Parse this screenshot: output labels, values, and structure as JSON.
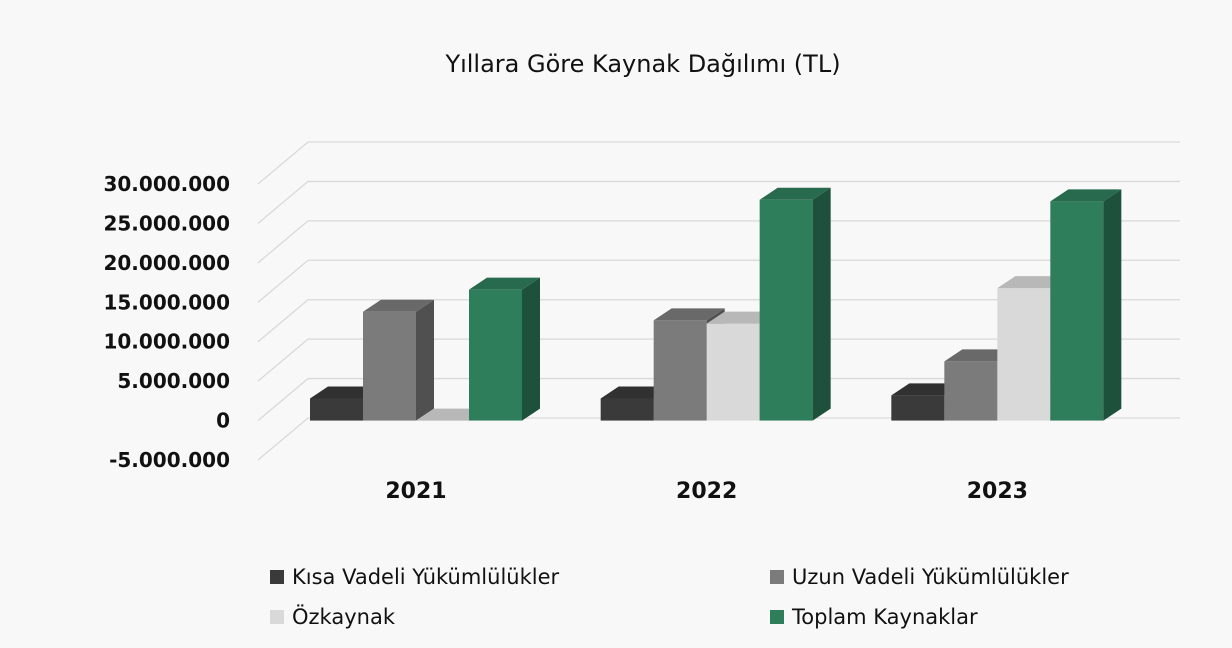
{
  "chart_data": {
    "type": "bar",
    "title": "Yıllara Göre Kaynak Dağılımı (TL)",
    "categories": [
      "2021",
      "2022",
      "2023"
    ],
    "series": [
      {
        "name": "Kısa Vadeli Yükümlülükler",
        "color": "#3a3a3a",
        "values": [
          2800000,
          2800000,
          3200000
        ]
      },
      {
        "name": "Uzun Vadeli Yükümlülükler",
        "color": "#7b7b7b",
        "values": [
          13800000,
          12700000,
          7500000
        ]
      },
      {
        "name": "Özkaynak",
        "color": "#d9d9d9",
        "values": [
          0,
          12300000,
          16800000
        ]
      },
      {
        "name": "Toplam Kaynaklar",
        "color": "#2e7d5b",
        "values": [
          16600000,
          28000000,
          27800000
        ]
      }
    ],
    "yticks": [
      "30.000.000",
      "25.000.000",
      "20.000.000",
      "15.000.000",
      "10.000.000",
      "5.000.000",
      "0",
      "-5.000.000"
    ],
    "ylim": [
      -5000000,
      30000000
    ],
    "grid": true,
    "legend_position": "bottom"
  }
}
